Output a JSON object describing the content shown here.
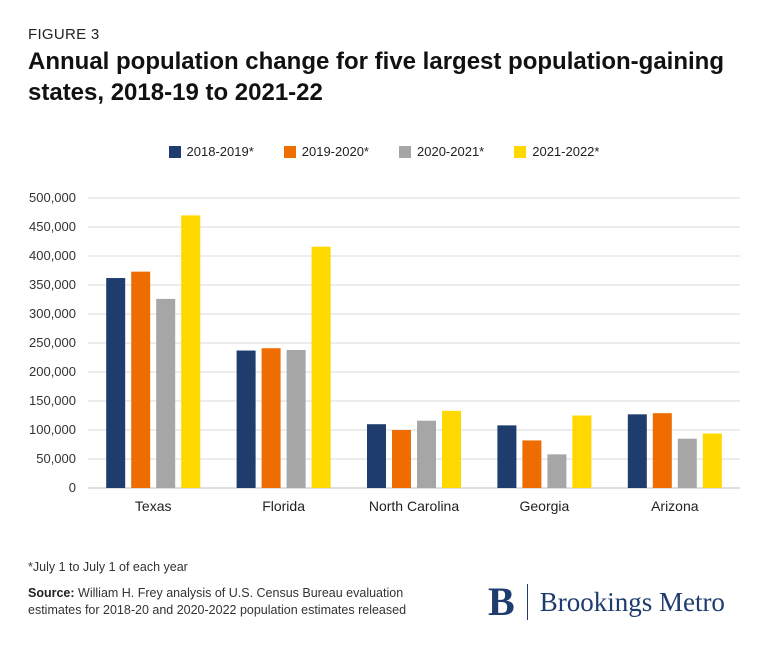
{
  "figure_label": "FIGURE 3",
  "title": "Annual population change for five largest population-gaining states, 2018-19 to 2021-22",
  "note": "*July 1 to July 1 of each year",
  "source": {
    "label": "Source:",
    "text": "William H. Frey analysis of U.S. Census Bureau evaluation estimates for 2018-20 and 2020-2022 population estimates released"
  },
  "logo": {
    "mark": "B",
    "text": "Brookings Metro"
  },
  "chart_data": {
    "type": "bar",
    "title": "Annual population change for five largest population-gaining states, 2018-19 to 2021-22",
    "xlabel": "",
    "ylabel": "",
    "categories": [
      "Texas",
      "Florida",
      "North Carolina",
      "Georgia",
      "Arizona"
    ],
    "series": [
      {
        "name": "2018-2019*",
        "color": "#1f3c6e",
        "values": [
          362000,
          237000,
          110000,
          108000,
          127000
        ]
      },
      {
        "name": "2019-2020*",
        "color": "#ee6c00",
        "values": [
          373000,
          241000,
          100000,
          82000,
          129000
        ]
      },
      {
        "name": "2020-2021*",
        "color": "#a6a6a6",
        "values": [
          326000,
          238000,
          116000,
          58000,
          85000
        ]
      },
      {
        "name": "2021-2022*",
        "color": "#ffd800",
        "values": [
          470000,
          416000,
          133000,
          125000,
          94000
        ]
      }
    ],
    "ylim": [
      0,
      500000
    ],
    "yticks": [
      0,
      50000,
      100000,
      150000,
      200000,
      250000,
      300000,
      350000,
      400000,
      450000,
      500000
    ],
    "ytick_labels": [
      "0",
      "50,000",
      "100,000",
      "150,000",
      "200,000",
      "250,000",
      "300,000",
      "350,000",
      "400,000",
      "450,000",
      "500,000"
    ],
    "grid": true,
    "legend_position": "top-center"
  }
}
